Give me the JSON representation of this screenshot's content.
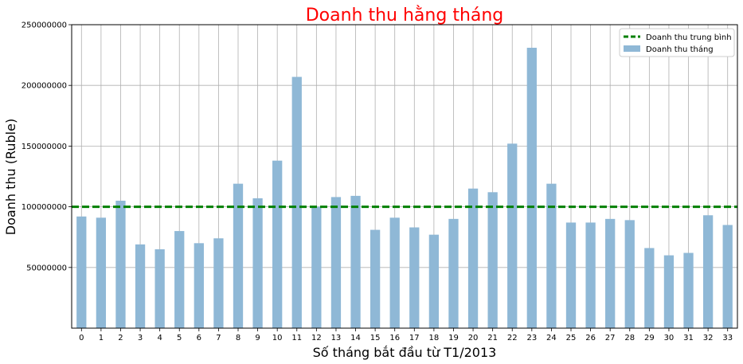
{
  "chart_data": {
    "type": "bar",
    "title": "Doanh thu hằng tháng",
    "title_color": "#ff0000",
    "xlabel": "Số tháng bắt đầu từ T1/2013",
    "ylabel": "Doanh thu (Ruble)",
    "categories": [
      "0",
      "1",
      "2",
      "3",
      "4",
      "5",
      "6",
      "7",
      "8",
      "9",
      "10",
      "11",
      "12",
      "13",
      "14",
      "15",
      "16",
      "17",
      "18",
      "19",
      "20",
      "21",
      "22",
      "23",
      "24",
      "25",
      "26",
      "27",
      "28",
      "29",
      "30",
      "31",
      "32",
      "33"
    ],
    "series": [
      {
        "name": "Doanh thu tháng",
        "color": "#8fb8d6",
        "values": [
          92000000,
          91000000,
          105000000,
          69000000,
          65000000,
          80000000,
          70000000,
          74000000,
          119000000,
          107000000,
          138000000,
          207000000,
          100000000,
          108000000,
          109000000,
          81000000,
          91000000,
          83000000,
          77000000,
          90000000,
          115000000,
          112000000,
          152000000,
          231000000,
          119000000,
          87000000,
          87000000,
          90000000,
          89000000,
          66000000,
          60000000,
          62000000,
          93000000,
          85000000
        ]
      }
    ],
    "mean_line": {
      "name": "Doanh thu trung bình",
      "value": 100000000,
      "color": "#008000",
      "style": "dashed"
    },
    "ylim": [
      0,
      250000000
    ],
    "yticks": [
      "50000000",
      "100000000",
      "150000000",
      "200000000",
      "250000000"
    ],
    "ytick_values": [
      50000000,
      100000000,
      150000000,
      200000000,
      250000000
    ],
    "grid": true,
    "legend_position": "top-right"
  }
}
